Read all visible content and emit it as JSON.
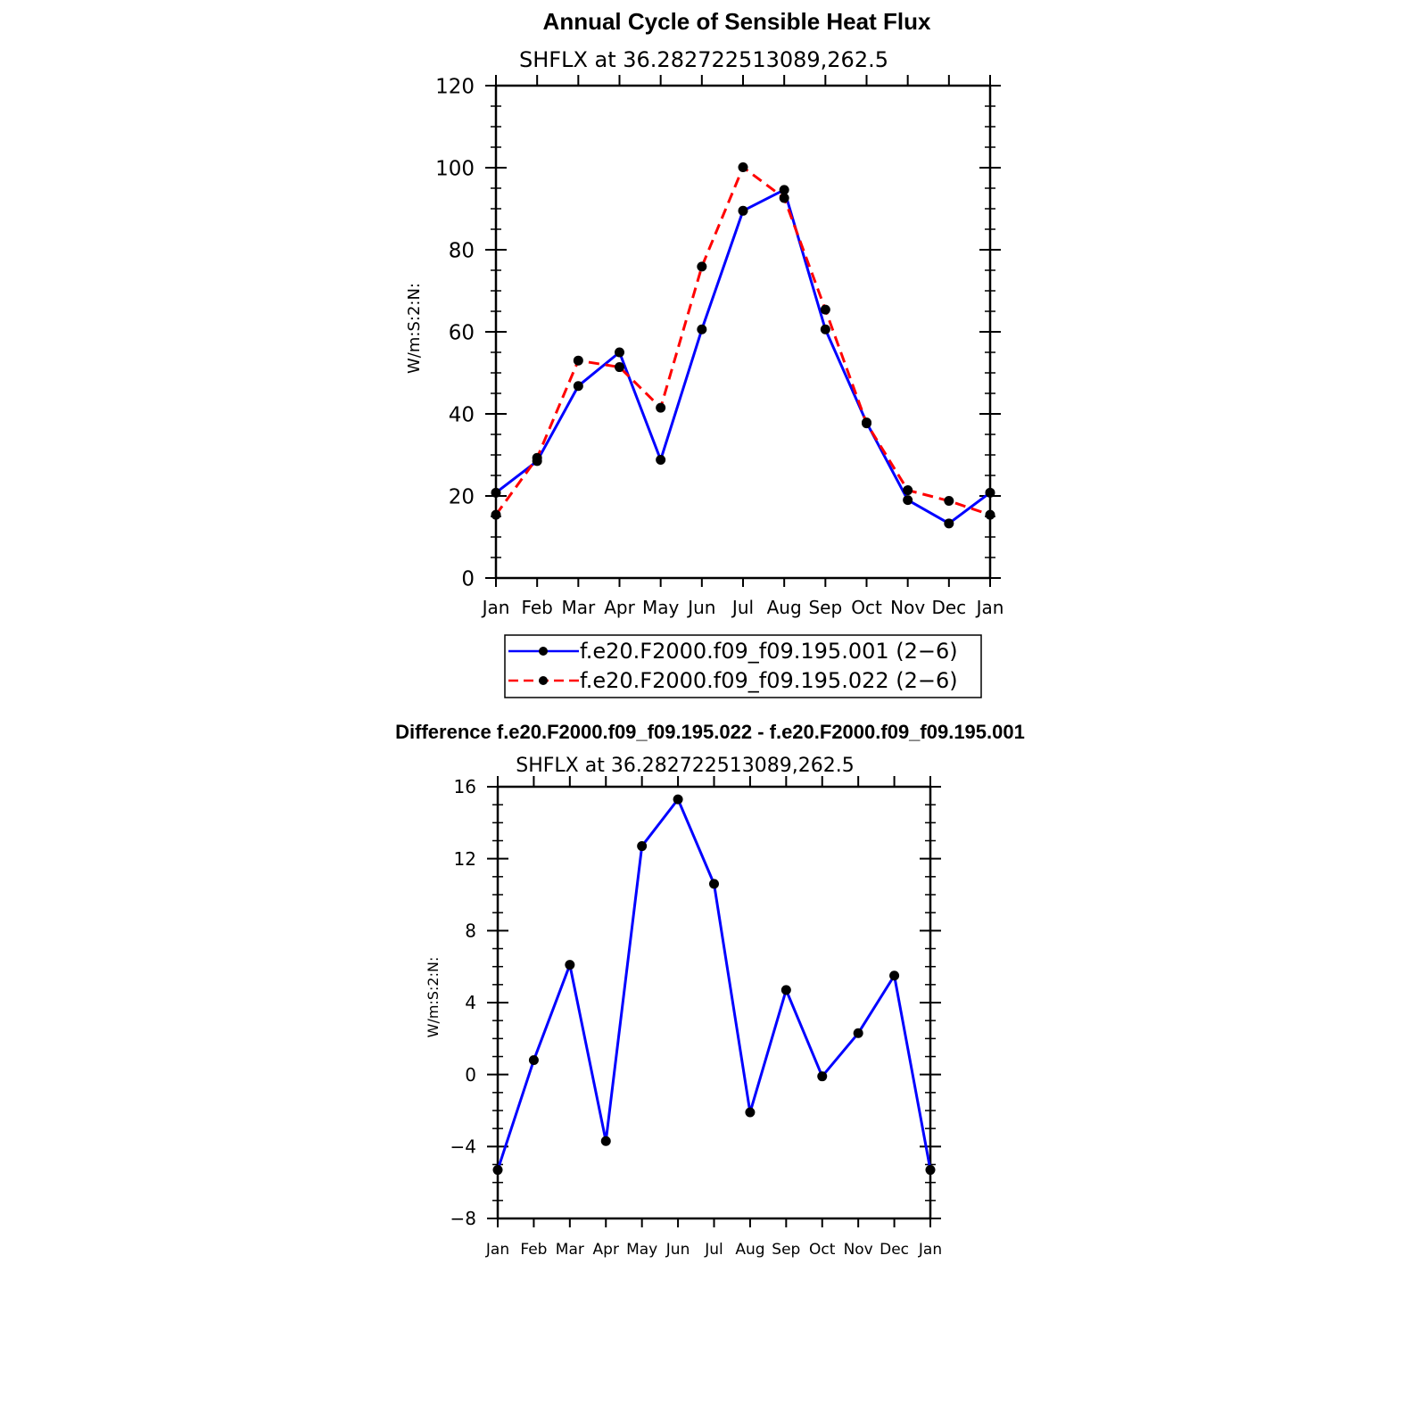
{
  "chart_data": [
    {
      "type": "line",
      "title": "Annual Cycle of Sensible Heat Flux",
      "subtitle": "SHFLX at 36.282722513089,262.5",
      "ylabel": "W/m:S:2:N:",
      "xlabel": "",
      "categories": [
        "Jan",
        "Feb",
        "Mar",
        "Apr",
        "May",
        "Jun",
        "Jul",
        "Aug",
        "Sep",
        "Oct",
        "Nov",
        "Dec",
        "Jan"
      ],
      "ylim": [
        0,
        120
      ],
      "yticks": [
        0,
        20,
        40,
        60,
        80,
        100,
        120
      ],
      "legend_position": "bottom",
      "series": [
        {
          "name": "f.e20.F2000.f09_f09.195.001 (2−6)",
          "color": "#0000ff",
          "dash": "solid",
          "values": [
            20.8,
            28.5,
            46.8,
            55.0,
            28.8,
            60.6,
            89.5,
            94.6,
            60.6,
            37.9,
            19.0,
            13.3,
            20.8
          ]
        },
        {
          "name": "f.e20.F2000.f09_f09.195.022 (2−6)",
          "color": "#ff0000",
          "dash": "dashed",
          "values": [
            15.4,
            29.3,
            53.0,
            51.4,
            41.5,
            75.9,
            100.1,
            92.6,
            65.4,
            37.7,
            21.4,
            18.8,
            15.4
          ]
        }
      ]
    },
    {
      "type": "line",
      "title": "Difference f.e20.F2000.f09_f09.195.022 - f.e20.F2000.f09_f09.195.001",
      "subtitle": "SHFLX at 36.282722513089,262.5",
      "ylabel": "W/m:S:2:N:",
      "xlabel": "",
      "categories": [
        "Jan",
        "Feb",
        "Mar",
        "Apr",
        "May",
        "Jun",
        "Jul",
        "Aug",
        "Sep",
        "Oct",
        "Nov",
        "Dec",
        "Jan"
      ],
      "ylim": [
        -8,
        16
      ],
      "yticks": [
        -8,
        -4,
        0,
        4,
        8,
        12,
        16
      ],
      "series": [
        {
          "name": "Difference",
          "color": "#0000ff",
          "dash": "solid",
          "values": [
            -5.3,
            0.8,
            6.1,
            -3.7,
            12.7,
            15.3,
            10.6,
            -2.1,
            4.7,
            -0.1,
            2.3,
            5.5,
            -5.3
          ]
        }
      ]
    }
  ]
}
